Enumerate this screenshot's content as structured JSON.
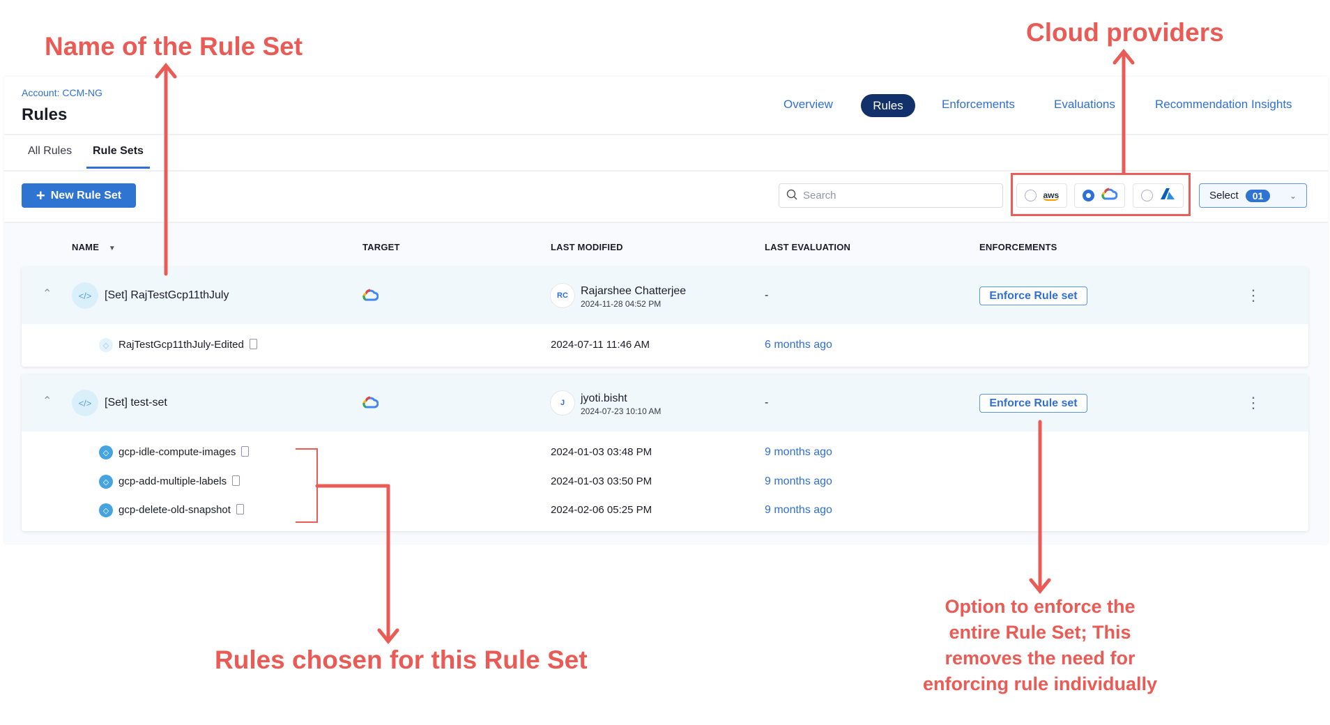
{
  "header": {
    "account": "Account: CCM-NG",
    "title": "Rules",
    "nav": [
      {
        "label": "Overview"
      },
      {
        "label": "Rules",
        "active": true
      },
      {
        "label": "Enforcements"
      },
      {
        "label": "Evaluations"
      },
      {
        "label": "Recommendation Insights"
      }
    ]
  },
  "tabs": [
    {
      "label": "All Rules"
    },
    {
      "label": "Rule Sets",
      "active": true
    }
  ],
  "toolbar": {
    "new_label": "New Rule Set",
    "search_placeholder": "Search",
    "providers": [
      {
        "name": "aws",
        "label": "aws",
        "selected": false
      },
      {
        "name": "gcp",
        "selected": true
      },
      {
        "name": "azure",
        "selected": false
      }
    ],
    "select_label": "Select",
    "select_count": "01"
  },
  "columns": [
    "NAME",
    "TARGET",
    "LAST MODIFIED",
    "LAST EVALUATION",
    "ENFORCEMENTS"
  ],
  "rule_sets": [
    {
      "name": "[Set] RajTestGcp11thJuly",
      "target": "gcp",
      "avatar": "RC",
      "modified_by": "Rajarshee Chatterjee",
      "modified_at": "2024-11-28 04:52 PM",
      "last_evaluation": "-",
      "enforce_label": "Enforce Rule set",
      "rules": [
        {
          "name": "RajTestGcp11thJuly-Edited",
          "modified": "2024-07-11 11:46 AM",
          "evaluation": "6 months ago"
        }
      ]
    },
    {
      "name": "[Set] test-set",
      "target": "gcp",
      "avatar": "J",
      "modified_by": "jyoti.bisht",
      "modified_at": "2024-07-23 10:10 AM",
      "last_evaluation": "-",
      "enforce_label": "Enforce Rule set",
      "rules": [
        {
          "name": "gcp-idle-compute-images",
          "modified": "2024-01-03 03:48 PM",
          "evaluation": "9 months ago"
        },
        {
          "name": "gcp-add-multiple-labels",
          "modified": "2024-01-03 03:50 PM",
          "evaluation": "9 months ago"
        },
        {
          "name": "gcp-delete-old-snapshot",
          "modified": "2024-02-06 05:25 PM",
          "evaluation": "9 months ago"
        }
      ]
    }
  ],
  "annotations": {
    "name": "Name of the Rule Set",
    "cloud": "Cloud providers",
    "rules": "Rules chosen for this Rule Set",
    "enforce": [
      "Option to enforce the",
      "entire Rule Set; This",
      "removes the need for",
      "enforcing rule individually"
    ],
    "color": "#ea5b55"
  }
}
